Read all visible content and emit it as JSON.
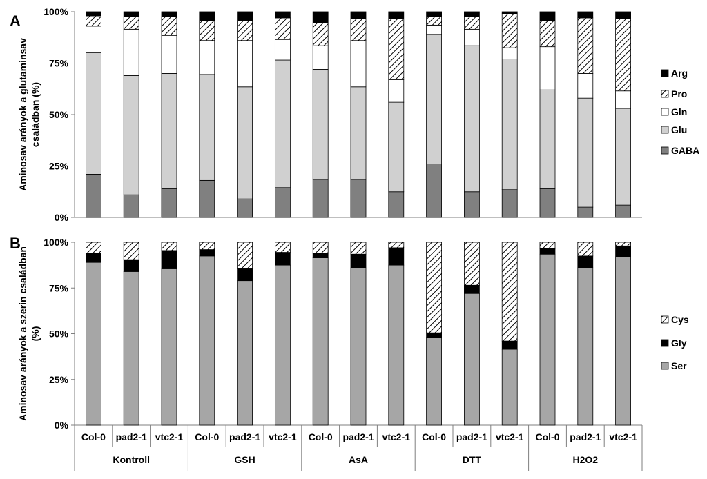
{
  "chart_data": [
    {
      "type": "bar",
      "stacked": true,
      "panel_label": "A",
      "ylabel": "Aminosav arányok  a glutaminsav\ncsaládban (%)",
      "ylim": [
        0,
        100
      ],
      "yticks": [
        "0%",
        "25%",
        "50%",
        "75%",
        "100%"
      ],
      "grid": false,
      "legend": "right",
      "categories": [
        "Col-0",
        "pad2-1",
        "vtc2-1",
        "Col-0",
        "pad2-1",
        "vtc2-1",
        "Col-0",
        "pad2-1",
        "vtc2-1",
        "Col-0",
        "pad2-1",
        "vtc2-1",
        "Col-0",
        "pad2-1",
        "vtc2-1"
      ],
      "groups": [
        "Kontroll",
        "GSH",
        "AsA",
        "DTT",
        "H2O2"
      ],
      "series": [
        {
          "name": "GABA",
          "pattern": "darkgray",
          "values": [
            21,
            11,
            14,
            18,
            9,
            14.5,
            18.5,
            18.5,
            12.5,
            26,
            12.5,
            13.5,
            14,
            5,
            6
          ]
        },
        {
          "name": "Glu",
          "pattern": "lightgray",
          "values": [
            59,
            58,
            56,
            51.5,
            54.5,
            62,
            53.5,
            45,
            43.5,
            63,
            71,
            63.5,
            48,
            53,
            47
          ]
        },
        {
          "name": "Gln",
          "pattern": "white",
          "values": [
            13,
            22.5,
            18.5,
            16.5,
            22.5,
            10,
            11.5,
            22.5,
            11,
            4.5,
            8,
            5.5,
            21,
            12,
            8.5
          ]
        },
        {
          "name": "Pro",
          "pattern": "hatch",
          "values": [
            5,
            6,
            9,
            9.5,
            9.5,
            10.5,
            11,
            10.5,
            29.5,
            4,
            6,
            16.5,
            12.5,
            27,
            35
          ]
        },
        {
          "name": "Arg",
          "pattern": "black",
          "values": [
            2,
            2.5,
            2.5,
            4.5,
            4.5,
            3,
            5.5,
            3.5,
            3.5,
            2.5,
            2.5,
            1,
            4.5,
            3,
            3.5
          ]
        }
      ]
    },
    {
      "type": "bar",
      "stacked": true,
      "panel_label": "B",
      "ylabel": "Aminosav arányok  a szerin családban\n(%)",
      "ylim": [
        0,
        100
      ],
      "yticks": [
        "0%",
        "25%",
        "50%",
        "75%",
        "100%"
      ],
      "grid": false,
      "legend": "right",
      "categories": [
        "Col-0",
        "pad2-1",
        "vtc2-1",
        "Col-0",
        "pad2-1",
        "vtc2-1",
        "Col-0",
        "pad2-1",
        "vtc2-1",
        "Col-0",
        "pad2-1",
        "vtc2-1",
        "Col-0",
        "pad2-1",
        "vtc2-1"
      ],
      "groups": [
        "Kontroll",
        "GSH",
        "AsA",
        "DTT",
        "H2O2"
      ],
      "series": [
        {
          "name": "Ser",
          "pattern": "midgray",
          "values": [
            89,
            84,
            85.5,
            92.5,
            79,
            87.5,
            91.5,
            86,
            87.5,
            48,
            72,
            41.5,
            93.5,
            86,
            92
          ]
        },
        {
          "name": "Gly",
          "pattern": "black",
          "values": [
            5,
            6.5,
            10,
            3.5,
            6.5,
            7,
            2.5,
            7.5,
            9.5,
            2.5,
            4.5,
            4.5,
            3,
            6.5,
            6
          ]
        },
        {
          "name": "Cys",
          "pattern": "hatch",
          "values": [
            6,
            9.5,
            4.5,
            4,
            14.5,
            5.5,
            6,
            6.5,
            3,
            49.5,
            23.5,
            54,
            3.5,
            7.5,
            2
          ]
        }
      ]
    }
  ]
}
